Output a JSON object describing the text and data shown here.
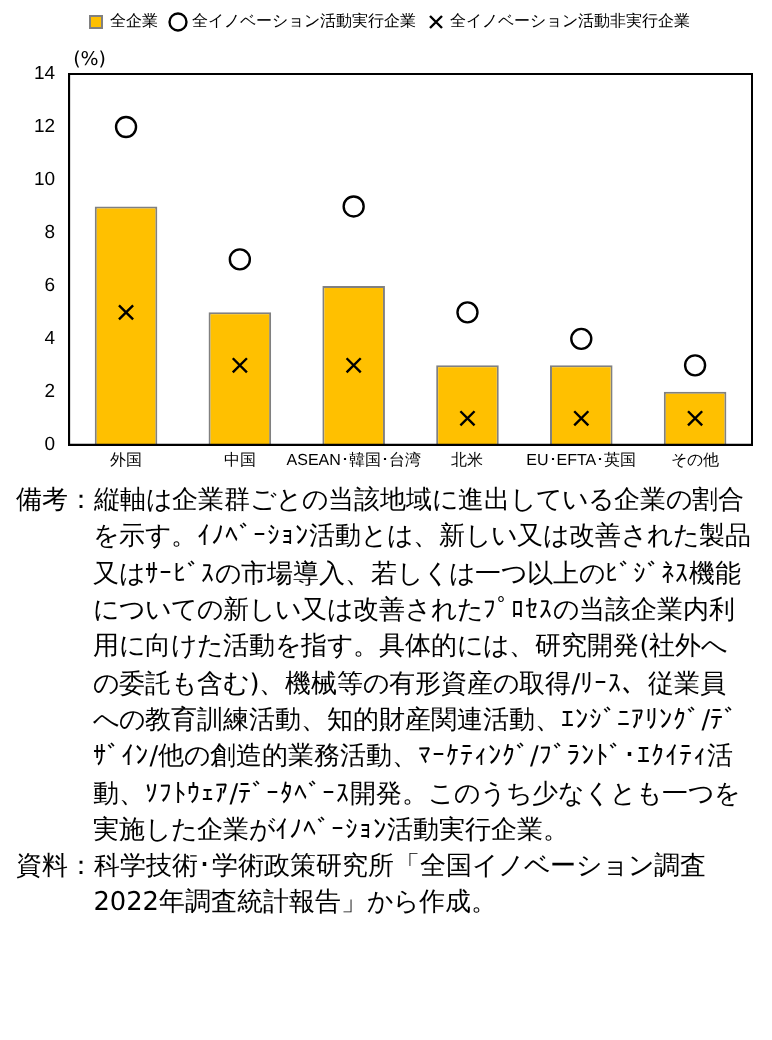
{
  "chart_data": {
    "type": "bar",
    "ylabel": "(%)",
    "categories": [
      "外国",
      "中国",
      "ASEAN･韓国･台湾",
      "北米",
      "EU･EFTA･英国",
      "その他"
    ],
    "series": [
      {
        "name": "全企業",
        "color": "#ffc000",
        "values": [
          9,
          5,
          6,
          3,
          3,
          2
        ]
      },
      {
        "name": "全イノベーション活動実行企業",
        "type": "scatter",
        "marker": "circle",
        "color": "#000000",
        "x": [
          "外国",
          "中国",
          "ASEAN･韓国･台湾",
          "北米",
          "EU･EFTA･英国",
          "その他"
        ],
        "values": [
          12,
          7,
          9,
          5,
          4,
          3
        ]
      },
      {
        "name": "全イノベーション活動非実行企業",
        "type": "scatter",
        "marker": "cross",
        "color": "#000000",
        "x": [
          "外国",
          "中国",
          "ASEAN･韓国･台湾",
          "北米",
          "EU･EFTA･英国",
          "その他"
        ],
        "values": [
          5,
          3,
          3,
          1,
          1,
          1
        ]
      }
    ],
    "ylim": [
      0,
      14
    ],
    "yticks": [
      0,
      2,
      4,
      6,
      8,
      10,
      12,
      14
    ],
    "grid": false,
    "legend": "top",
    "annotations": [
      "備考：縦軸は企業群ごとの当該地域に進出している企業の割合を示す。ｲﾉﾍﾞｰｼｮﾝ活動とは、新しい又は改善された製品又はｻｰﾋﾞｽの市場導入、若しくは一つ以上のﾋﾞｼﾞﾈｽ機能についての新しい又は改善されたﾌﾟﾛｾｽの当該企業内利用に向けた活動を指す。具体的には、研究開発(社外への委託も含む)、機械等の有形資産の取得/ﾘｰｽ、従業員への教育訓練活動、知的財産関連活動、ｴﾝｼﾞﾆｱﾘﾝｸﾞ/ﾃﾞｻﾞｲﾝ/他の創造的業務活動、ﾏｰｹﾃｨﾝｸﾞ/ﾌﾞﾗﾝﾄﾞ･ｴｸｲﾃｨ活動、ｿﾌﾄｳｪｱ/ﾃﾞｰﾀﾍﾞｰｽ開発。このうち少なくとも一つを実施した企業がｲﾉﾍﾞｰｼｮﾝ活動実行企業。",
      "資料：科学技術･学術政策研究所「全国イノベーション調査2022年調査統計報告」から作成。"
    ]
  }
}
